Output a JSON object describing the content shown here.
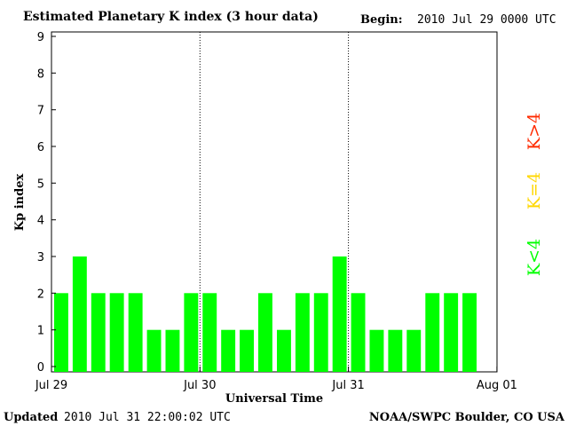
{
  "header": {
    "title": "Estimated Planetary K index (3 hour data)",
    "begin_label": "Begin:",
    "begin_value": "2010 Jul 29 0000 UTC"
  },
  "footer": {
    "updated_label": "Updated",
    "updated_value": "2010 Jul 31 22:00:02 UTC",
    "source": "NOAA/SWPC Boulder, CO USA"
  },
  "colors": {
    "below4": "#00ff00",
    "equal4": "#ffd700",
    "above4": "#ff2a00"
  },
  "legend": {
    "above": "K>4",
    "equal": "K=4",
    "below": "K<4"
  },
  "chart_data": {
    "type": "bar",
    "title": "Estimated Planetary K index (3 hour data)",
    "xlabel": "Universal Time",
    "ylabel": "Kp index",
    "ylim": [
      0,
      9
    ],
    "yticks": [
      "0",
      "1",
      "2",
      "3",
      "4",
      "5",
      "6",
      "7",
      "8",
      "9"
    ],
    "xticks": [
      "Jul 29",
      "Jul 30",
      "Jul 31",
      "Aug 01"
    ],
    "interval_hours": 3,
    "values": [
      2,
      3,
      2,
      2,
      2,
      1,
      1,
      2,
      2,
      1,
      1,
      2,
      1,
      2,
      2,
      3,
      2,
      1,
      1,
      1,
      2,
      2,
      2
    ],
    "day_separators": [
      "Jul 30",
      "Jul 31"
    ],
    "grid": false
  }
}
